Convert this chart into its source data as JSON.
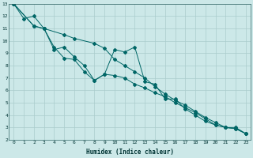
{
  "bg_color": "#cce8e8",
  "grid_color": "#aacccc",
  "line_color": "#006666",
  "xlabel": "Humidex (Indice chaleur)",
  "xlim": [
    -0.5,
    23.5
  ],
  "ylim": [
    2,
    13
  ],
  "xticks": [
    0,
    1,
    2,
    3,
    4,
    5,
    6,
    7,
    8,
    9,
    10,
    11,
    12,
    13,
    14,
    15,
    16,
    17,
    18,
    19,
    20,
    21,
    22,
    23
  ],
  "yticks": [
    2,
    3,
    4,
    5,
    6,
    7,
    8,
    9,
    10,
    11,
    12,
    13
  ],
  "line1_x": [
    0,
    1,
    2,
    3,
    4,
    5,
    6,
    7,
    8,
    9,
    10,
    11,
    12,
    13,
    14,
    15,
    16,
    17,
    18,
    19,
    20,
    21,
    22,
    23
  ],
  "line1_y": [
    13.0,
    11.8,
    12.0,
    11.0,
    9.3,
    9.5,
    8.7,
    8.0,
    6.8,
    7.3,
    7.2,
    7.0,
    6.5,
    6.2,
    5.8,
    5.5,
    5.0,
    4.6,
    4.2,
    3.7,
    3.2,
    3.0,
    2.9,
    2.5
  ],
  "line2_x": [
    0,
    2,
    3,
    4,
    5,
    6,
    7,
    8,
    9,
    10,
    11,
    12,
    13,
    14,
    15,
    16,
    17,
    18,
    19,
    20,
    21,
    22,
    23
  ],
  "line2_y": [
    13.0,
    11.2,
    11.0,
    9.5,
    8.6,
    8.5,
    7.5,
    6.8,
    7.3,
    9.3,
    9.1,
    9.5,
    6.7,
    6.5,
    5.3,
    5.3,
    4.5,
    4.0,
    3.5,
    3.2,
    3.0,
    3.0,
    2.5
  ],
  "line3_x": [
    0,
    2,
    3,
    5,
    6,
    8,
    9,
    10,
    11,
    12,
    13,
    14,
    15,
    16,
    17,
    18,
    19,
    20,
    21,
    22,
    23
  ],
  "line3_y": [
    13.0,
    11.2,
    11.0,
    10.5,
    10.2,
    9.8,
    9.4,
    8.5,
    8.0,
    7.5,
    7.0,
    6.3,
    5.7,
    5.2,
    4.8,
    4.3,
    3.8,
    3.4,
    3.0,
    2.9,
    2.5
  ]
}
